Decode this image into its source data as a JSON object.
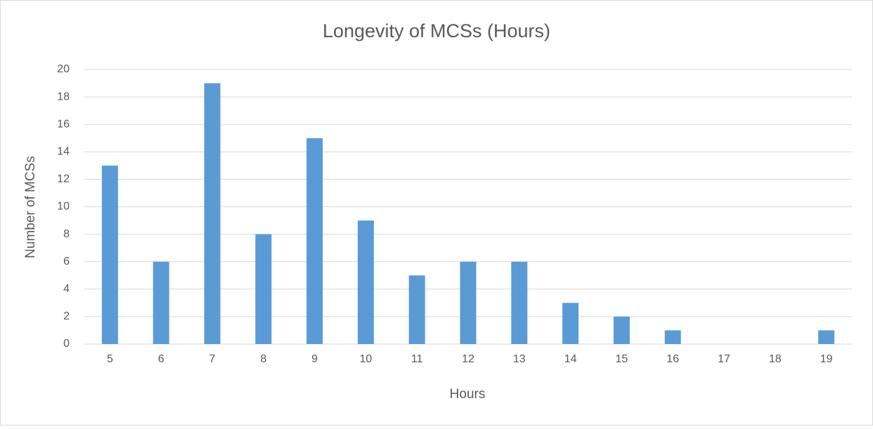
{
  "chart_data": {
    "type": "bar",
    "title": "Longevity of MCSs (Hours)",
    "x_label": "Hours",
    "y_label": "Number of MCSs",
    "categories": [
      "5",
      "6",
      "7",
      "8",
      "9",
      "10",
      "11",
      "12",
      "13",
      "14",
      "15",
      "16",
      "17",
      "18",
      "19"
    ],
    "values": [
      13,
      6,
      19,
      8,
      15,
      9,
      5,
      6,
      6,
      3,
      2,
      1,
      0,
      0,
      1
    ],
    "color": "#5b9bd5",
    "ylim": [
      0,
      20
    ],
    "yticks": [
      0,
      2,
      4,
      6,
      8,
      10,
      12,
      14,
      16,
      18,
      20
    ],
    "grid": true
  }
}
